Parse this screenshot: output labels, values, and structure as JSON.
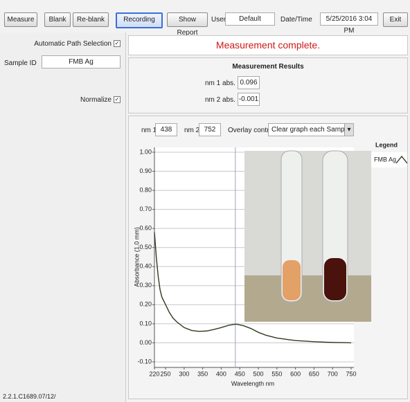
{
  "toolbar": {
    "buttons": [
      "Measure",
      "Blank",
      "Re-blank",
      "Recording",
      "Show Report",
      "Exit"
    ],
    "user_label": "User",
    "user": "Default",
    "datetime_label": "Date/Time",
    "datetime": "5/25/2016 3:04 PM"
  },
  "left_panel": {
    "auto_path": "Automatic Path Selection",
    "sample_id_label": "Sample ID",
    "sample_id": "FMB Ag",
    "normalize": "Normalize",
    "version": "2.2.1.C1689.07/12/"
  },
  "status": "Measurement complete.",
  "results": {
    "title": "Measurement Results",
    "nm1_label": "nm 1 abs.",
    "nm1_abs": 0.096,
    "nm2_label": "nm 2 abs.",
    "nm2_abs": -0.001
  },
  "controls": {
    "nm1_label": "nm 1",
    "nm1": 438,
    "nm2_label": "nm 2",
    "nm2": 752,
    "overlay_label": "Overlay control",
    "overlay": "Clear graph each Sample"
  },
  "chart_data": {
    "type": "line",
    "x_label": "Wavelength nm",
    "y_label": "Absorbance (1.0 mm)",
    "legend_title": "Legend",
    "xlim": [
      220,
      750
    ],
    "ylim": [
      -0.1,
      1.0
    ],
    "xticks": [
      220,
      250,
      300,
      350,
      400,
      450,
      500,
      550,
      600,
      650,
      700,
      750
    ],
    "yticks": [
      {
        "value": 1.0,
        "label": "1.00"
      },
      {
        "value": 0.9,
        "label": "0.90"
      },
      {
        "value": 0.8,
        "label": "0.80"
      },
      {
        "value": 0.7,
        "label": "0.70"
      },
      {
        "value": 0.6,
        "label": "0.60"
      },
      {
        "value": 0.5,
        "label": "0.50"
      },
      {
        "value": 0.4,
        "label": "0.40"
      },
      {
        "value": 0.3,
        "label": "0.30"
      },
      {
        "value": 0.2,
        "label": "0.20"
      },
      {
        "value": 0.1,
        "label": "0.10"
      },
      {
        "value": 0.0,
        "label": "0.00"
      },
      {
        "value": -0.1,
        "label": "-0.10"
      }
    ],
    "grid": true,
    "x": [
      220,
      225,
      230,
      235,
      240,
      250,
      260,
      270,
      280,
      300,
      320,
      340,
      360,
      380,
      400,
      420,
      440,
      460,
      480,
      500,
      520,
      550,
      600,
      650,
      700,
      750
    ],
    "series": [
      {
        "name": "FMB Ag",
        "color": "#2e3a1f",
        "values": [
          0.58,
          0.45,
          0.35,
          0.28,
          0.24,
          0.2,
          0.16,
          0.13,
          0.11,
          0.08,
          0.065,
          0.06,
          0.062,
          0.07,
          0.08,
          0.092,
          0.098,
          0.09,
          0.075,
          0.055,
          0.04,
          0.025,
          0.012,
          0.006,
          0.002,
          0.0
        ]
      }
    ]
  }
}
